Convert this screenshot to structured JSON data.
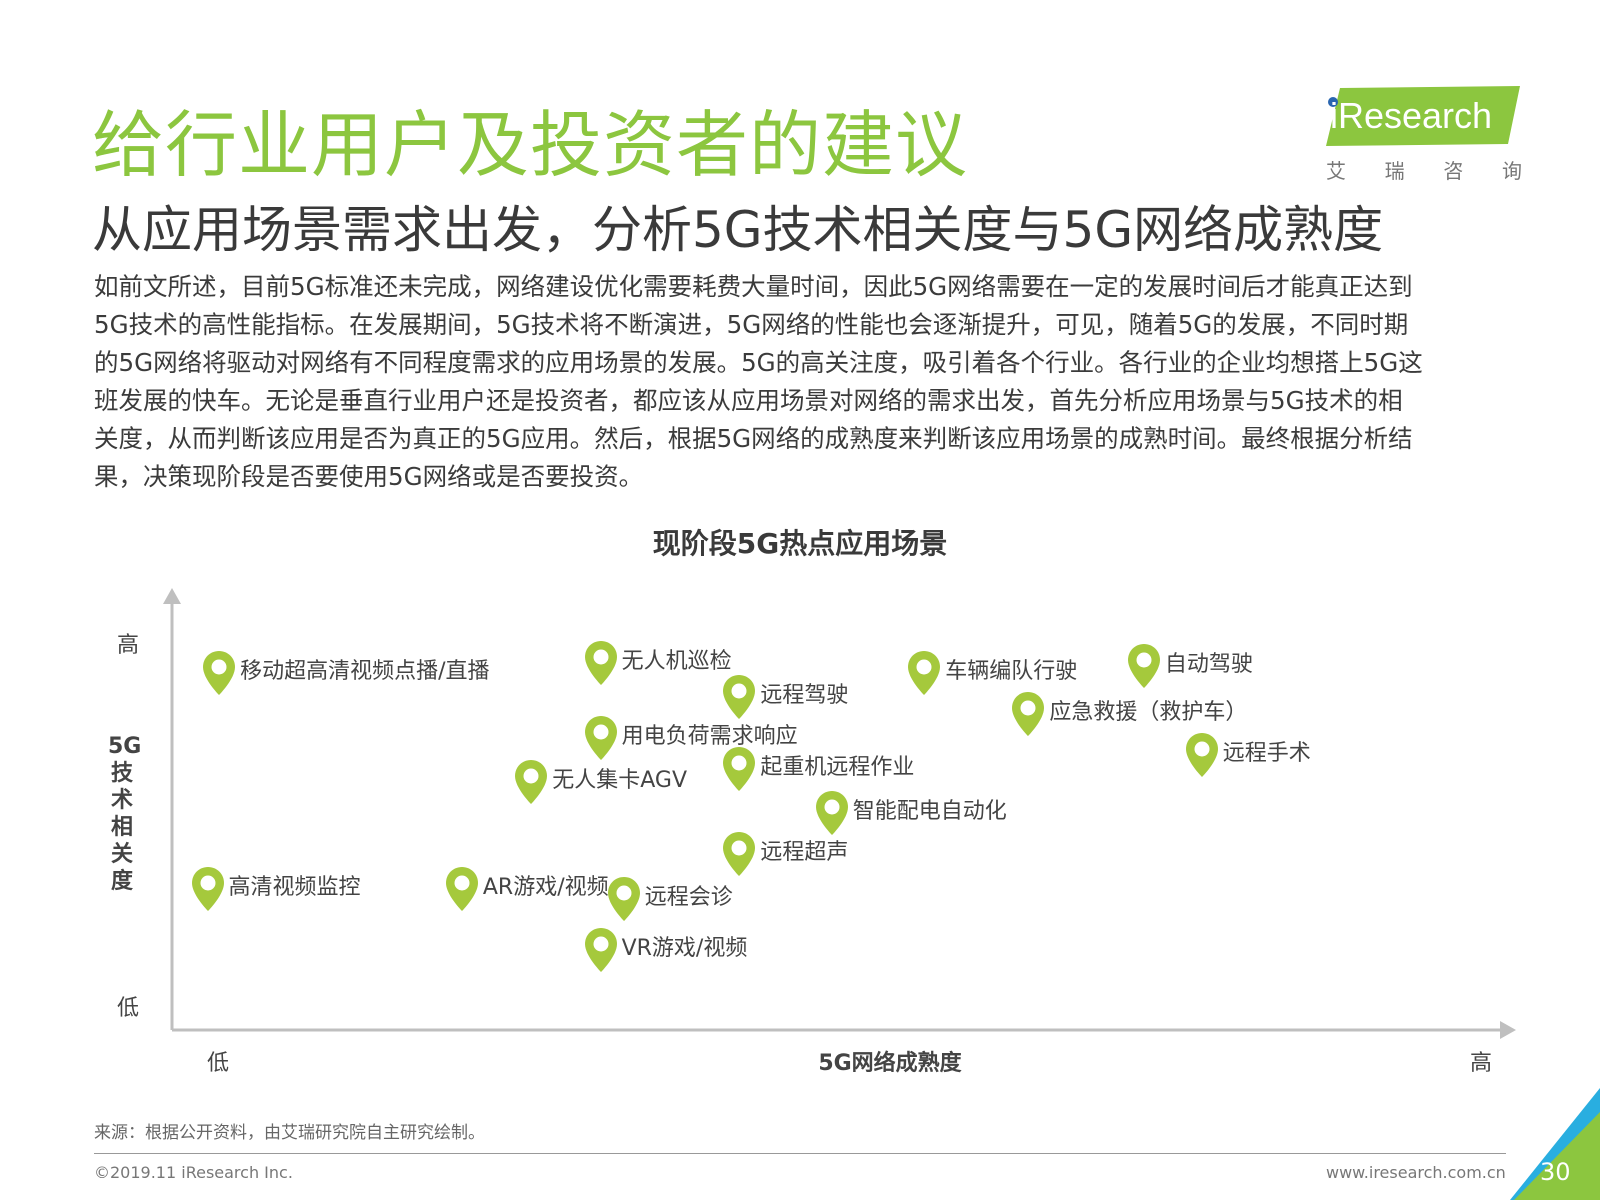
{
  "header": {
    "title": "给行业用户及投资者的建议",
    "subtitle": "从应用场景需求出发，分析5G技术相关度与5G网络成熟度"
  },
  "logo": {
    "brand": "iResearch",
    "cn": [
      "艾",
      "瑞",
      "咨",
      "询"
    ],
    "accent_color": "#8cc63f"
  },
  "body_lines": [
    "如前文所述，目前5G标准还未完成，网络建设优化需要耗费大量时间，因此5G网络需要在一定的发展时间后才能真正达到",
    "5G技术的高性能指标。在发展期间，5G技术将不断演进，5G网络的性能也会逐渐提升，可见，随着5G的发展，不同时期",
    "的5G网络将驱动对网络有不同程度需求的应用场景的发展。5G的高关注度，吸引着各个行业。各行业的企业均想搭上5G这",
    "班发展的快车。无论是垂直行业用户还是投资者，都应该从应用场景对网络的需求出发，首先分析应用场景与5G技术的相",
    "关度，从而判断该应用是否为真正的5G应用。然后，根据5G网络的成熟度来判断该应用场景的成熟时间。最终根据分析结",
    "果，决策现阶段是否要使用5G网络或是否要投资。"
  ],
  "chart_data": {
    "type": "scatter",
    "title": "现阶段5G热点应用场景",
    "xlabel": "5G网络成熟度",
    "ylabel": "5G技术相关度",
    "x_low": "低",
    "x_high": "高",
    "y_low": "低",
    "y_high": "高",
    "xlim": [
      0,
      100
    ],
    "ylim": [
      0,
      100
    ],
    "marker_color": "#a5c93c",
    "points": [
      {
        "label": "移动超高清视频点播/直播",
        "x": 2,
        "y": 88
      },
      {
        "label": "无人机巡检",
        "x": 35,
        "y": 91
      },
      {
        "label": "远程驾驶",
        "x": 47,
        "y": 81
      },
      {
        "label": "车辆编队行驶",
        "x": 63,
        "y": 88
      },
      {
        "label": "自动驾驶",
        "x": 82,
        "y": 90
      },
      {
        "label": "应急救援（救护车）",
        "x": 72,
        "y": 76
      },
      {
        "label": "用电负荷需求响应",
        "x": 35,
        "y": 69
      },
      {
        "label": "起重机远程作业",
        "x": 47,
        "y": 60
      },
      {
        "label": "远程手术",
        "x": 87,
        "y": 64
      },
      {
        "label": "无人集卡AGV",
        "x": 29,
        "y": 56
      },
      {
        "label": "智能配电自动化",
        "x": 55,
        "y": 47
      },
      {
        "label": "远程超声",
        "x": 47,
        "y": 35
      },
      {
        "label": "高清视频监控",
        "x": 1,
        "y": 25
      },
      {
        "label": "AR游戏/视频",
        "x": 23,
        "y": 25
      },
      {
        "label": "远程会诊",
        "x": 37,
        "y": 22
      },
      {
        "label": "VR游戏/视频",
        "x": 35,
        "y": 7
      }
    ]
  },
  "footer": {
    "source": "来源：根据公开资料，由艾瑞研究院自主研究绘制。",
    "copyright": "©2019.11 iResearch Inc.",
    "website": "www.iresearch.com.cn",
    "page_number": "30"
  }
}
